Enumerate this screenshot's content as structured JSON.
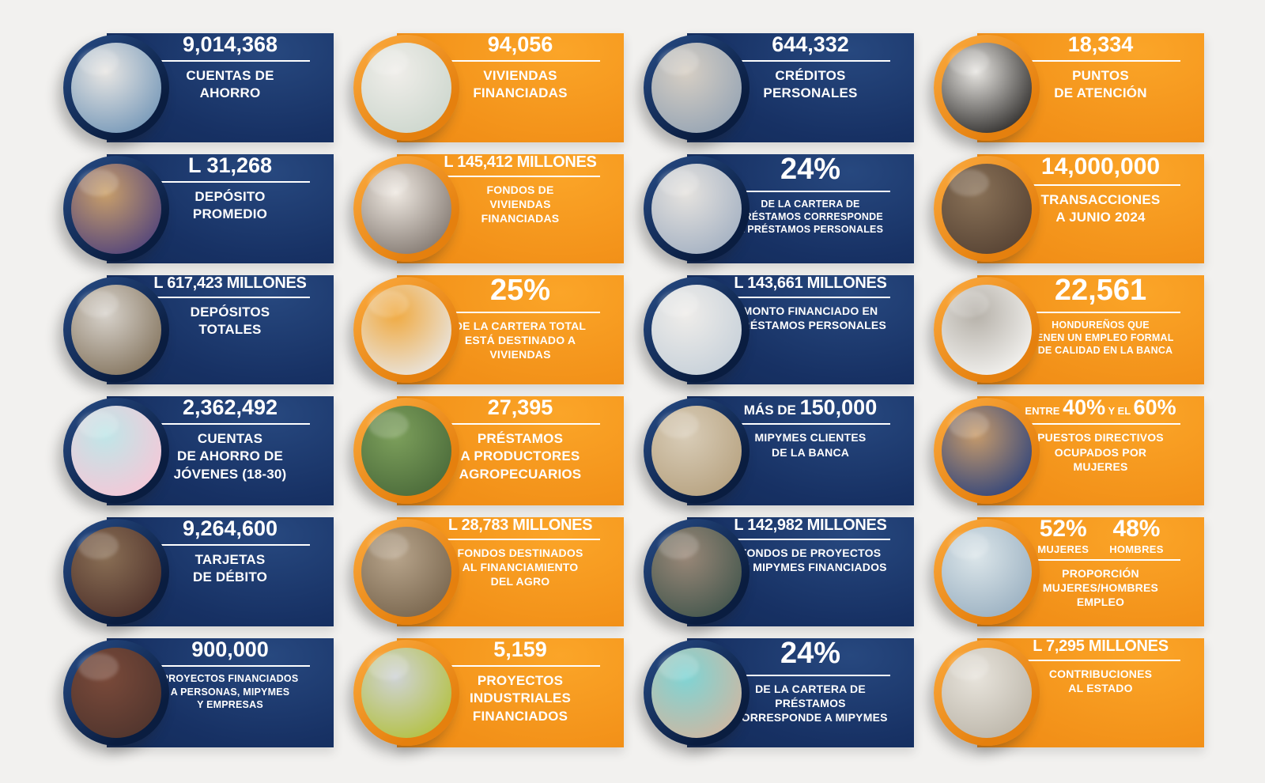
{
  "page": {
    "background_color": "#f2f1ef",
    "text_color": "#ffffff",
    "navy_color": "#12294f",
    "orange_color": "#f29018"
  },
  "chart_data": {
    "type": "table",
    "title": "Indicadores del sector bancario (infografía)",
    "columns": [
      "valor",
      "indicador"
    ],
    "rows": [
      [
        "9,014,368",
        "Cuentas de ahorro"
      ],
      [
        "L 31,268",
        "Depósito promedio"
      ],
      [
        "L 617,423 millones",
        "Depósitos totales"
      ],
      [
        "2,362,492",
        "Cuentas de ahorro de jóvenes (18-30)"
      ],
      [
        "9,264,600",
        "Tarjetas de débito"
      ],
      [
        "900,000",
        "Proyectos financiados a personas, MIPYMES y empresas"
      ],
      [
        "94,056",
        "Viviendas financiadas"
      ],
      [
        "L 145,412 millones",
        "Fondos de viviendas financiadas"
      ],
      [
        "25%",
        "De la cartera total está destinado a viviendas"
      ],
      [
        "27,395",
        "Préstamos a productores agropecuarios"
      ],
      [
        "L 28,783 millones",
        "Fondos destinados al financiamiento del agro"
      ],
      [
        "5,159",
        "Proyectos industriales financiados"
      ],
      [
        "644,332",
        "Créditos personales"
      ],
      [
        "24%",
        "De la cartera de préstamos corresponde a préstamos personales"
      ],
      [
        "L 143,661 millones",
        "Monto financiado en préstamos personales"
      ],
      [
        "Más de 150,000",
        "MIPYMES clientes de la banca"
      ],
      [
        "L 142,982 millones",
        "Fondos de proyectos de MIPYMES financiados"
      ],
      [
        "24%",
        "De la cartera de préstamos corresponde a MIPYMES"
      ],
      [
        "18,334",
        "Puntos de atención"
      ],
      [
        "14,000,000",
        "Transacciones a junio 2024"
      ],
      [
        "22,561",
        "Hondureños que tienen un empleo formal y de calidad en la banca"
      ],
      [
        "Entre 40% y el 60%",
        "Puestos directivos ocupados por mujeres"
      ],
      [
        "52% mujeres / 48% hombres",
        "Proporción mujeres/hombres empleo"
      ],
      [
        "L 7,295 millones",
        "Contribuciones al Estado"
      ]
    ]
  },
  "cards": [
    {
      "col": 1,
      "row": 1,
      "theme": "navy",
      "photo": {
        "name": "photo-couple-back-to-back",
        "desc": "pareja de espaldas con brazos cruzados",
        "tones": [
          "#e8e6e3",
          "#7d9dbb"
        ]
      },
      "headline": [
        {
          "t": "9,014,368",
          "s": "lg"
        }
      ],
      "label": "CUENTAS DE\nAHORRO",
      "lsize": "md"
    },
    {
      "col": 1,
      "row": 2,
      "theme": "navy",
      "photo": {
        "name": "photo-wallet-bank-teller",
        "desc": "manos con billetera en ventanilla",
        "tones": [
          "#caa06a",
          "#5a4a7a"
        ]
      },
      "headline": [
        {
          "t": "L 31,268",
          "s": "lg"
        }
      ],
      "label": "DEPÓSITO\nPROMEDIO",
      "lsize": "md"
    },
    {
      "col": 1,
      "row": 3,
      "theme": "navy",
      "photo": {
        "name": "photo-coin-jar",
        "desc": "mano depositando moneda en frasco",
        "tones": [
          "#d8d3cc",
          "#8a7b66"
        ]
      },
      "headline": [
        {
          "t": "L 617,423 MILLONES",
          "s": "md"
        }
      ],
      "label": "DEPÓSITOS\nTOTALES",
      "lsize": "md"
    },
    {
      "col": 1,
      "row": 4,
      "theme": "navy",
      "photo": {
        "name": "photo-young-woman-piggy-bank",
        "desc": "joven con alcancía rosada",
        "tones": [
          "#bfe6e8",
          "#f2c9d8"
        ]
      },
      "headline": [
        {
          "t": "2,362,492",
          "s": "lg"
        }
      ],
      "label": "CUENTAS\nDE AHORRO DE\nJÓVENES (18-30)",
      "lsize": "md"
    },
    {
      "col": 1,
      "row": 5,
      "theme": "navy",
      "photo": {
        "name": "photo-woman-phone-debit-card",
        "desc": "mujer con teléfono y tarjeta",
        "tones": [
          "#8a6f55",
          "#53362e"
        ]
      },
      "headline": [
        {
          "t": "9,264,600",
          "s": "lg"
        }
      ],
      "label": "TARJETAS\nDE DÉBITO",
      "lsize": "md"
    },
    {
      "col": 1,
      "row": 6,
      "theme": "navy",
      "photo": {
        "name": "photo-businesswoman-cafe",
        "desc": "emprendedora con brazos cruzados",
        "tones": [
          "#7a4a3a",
          "#53362e"
        ]
      },
      "headline": [
        {
          "t": "900,000",
          "s": "lg"
        }
      ],
      "label": "PROYECTOS FINANCIADOS\nA PERSONAS, MIPYMES\nY EMPRESAS",
      "lsize": "xs"
    },
    {
      "col": 2,
      "row": 1,
      "theme": "orange",
      "photo": {
        "name": "photo-couple-new-home",
        "desc": "pareja con casa modelo y laptop",
        "tones": [
          "#f0eeea",
          "#cfd8cf"
        ]
      },
      "headline": [
        {
          "t": "94,056",
          "s": "lg"
        }
      ],
      "label": "VIVIENDAS\nFINANCIADAS",
      "lsize": "md"
    },
    {
      "col": 2,
      "row": 2,
      "theme": "orange",
      "photo": {
        "name": "photo-hand-model-house",
        "desc": "mano sosteniendo casa modelo",
        "tones": [
          "#efe9e2",
          "#8a8078"
        ]
      },
      "headline": [
        {
          "t": "L 145,412 MILLONES",
          "s": "md"
        }
      ],
      "label": "FONDOS DE\nVIVIENDAS\nFINANCIADAS",
      "lsize": "sm"
    },
    {
      "col": 2,
      "row": 3,
      "theme": "orange",
      "photo": {
        "name": "photo-couple-celebrating-moving",
        "desc": "pareja celebrando mudanza",
        "tones": [
          "#f0a93f",
          "#e9e2d8"
        ]
      },
      "headline": [
        {
          "t": "25%",
          "s": "xl"
        }
      ],
      "label": "DE LA CARTERA TOTAL\nESTÁ DESTINADO A\nVIVIENDAS",
      "lsize": "sm"
    },
    {
      "col": 2,
      "row": 4,
      "theme": "orange",
      "photo": {
        "name": "photo-farmer-field",
        "desc": "agricultor con azadón en campo",
        "tones": [
          "#7da05c",
          "#4e6e3c"
        ]
      },
      "headline": [
        {
          "t": "27,395",
          "s": "lg"
        }
      ],
      "label": "PRÉSTAMOS\nA PRODUCTORES\nAGROPECUARIOS",
      "lsize": "md"
    },
    {
      "col": 2,
      "row": 5,
      "theme": "orange",
      "photo": {
        "name": "photo-dairy-farmer-cows",
        "desc": "ganadero con lechera entre vacas",
        "tones": [
          "#b8a58c",
          "#7d6a52"
        ]
      },
      "headline": [
        {
          "t": "L 28,783 MILLONES",
          "s": "md"
        }
      ],
      "label": "FONDOS DESTINADOS\nAL FINANCIAMIENTO\nDEL AGRO",
      "lsize": "sm"
    },
    {
      "col": 2,
      "row": 6,
      "theme": "orange",
      "photo": {
        "name": "photo-industrial-engineer",
        "desc": "ingeniero con casco y laptop",
        "tones": [
          "#cfd3d6",
          "#b5c24a"
        ]
      },
      "headline": [
        {
          "t": "5,159",
          "s": "lg"
        }
      ],
      "label": "PROYECTOS\nINDUSTRIALES\nFINANCIADOS",
      "lsize": "md"
    },
    {
      "col": 3,
      "row": 1,
      "theme": "navy",
      "photo": {
        "name": "photo-handshake-loan",
        "desc": "apretón de manos y documentos",
        "tones": [
          "#d7cfc4",
          "#9aa7b5"
        ]
      },
      "headline": [
        {
          "t": "644,332",
          "s": "lg"
        }
      ],
      "label": "CRÉDITOS\nPERSONALES",
      "lsize": "md"
    },
    {
      "col": 3,
      "row": 2,
      "theme": "navy",
      "photo": {
        "name": "photo-couple-advisor-meeting",
        "desc": "pareja en reunión con asesor",
        "tones": [
          "#e6e3df",
          "#a8b4c4"
        ]
      },
      "headline": [
        {
          "t": "24%",
          "s": "xl"
        }
      ],
      "label": "DE LA CARTERA DE\nPRÉSTAMOS CORRESPONDE\nA PRÉSTAMOS PERSONALES",
      "lsize": "xs"
    },
    {
      "col": 3,
      "row": 3,
      "theme": "navy",
      "photo": {
        "name": "photo-woman-holding-cash",
        "desc": "mujer sonriente con billetes",
        "tones": [
          "#efedea",
          "#c9d2da"
        ]
      },
      "headline": [
        {
          "t": "L 143,661 MILLONES",
          "s": "md"
        }
      ],
      "label": "MONTO FINANCIADO EN\nPRÉSTAMOS PERSONALES",
      "lsize": "sm"
    },
    {
      "col": 3,
      "row": 4,
      "theme": "navy",
      "photo": {
        "name": "photo-shop-owner-paper-bag",
        "desc": "comerciante entregando bolsa",
        "tones": [
          "#d9cdb8",
          "#b9a584"
        ]
      },
      "headline": [
        {
          "t": "MÁS DE ",
          "s": "sm"
        },
        {
          "t": "150,000",
          "s": "lg"
        }
      ],
      "label": "MIPYMES CLIENTES\nDE LA BANCA",
      "lsize": "sm"
    },
    {
      "col": 3,
      "row": 5,
      "theme": "navy",
      "photo": {
        "name": "photo-butcher-shop-woman",
        "desc": "mujer con delantal en carnicería",
        "tones": [
          "#9a8878",
          "#4a5a50"
        ]
      },
      "headline": [
        {
          "t": "L 142,982 MILLONES",
          "s": "md"
        }
      ],
      "label": "FONDOS DE PROYECTOS\nDE MIPYMES FINANCIADOS",
      "lsize": "sm"
    },
    {
      "col": 3,
      "row": 6,
      "theme": "navy",
      "photo": {
        "name": "photo-entrepreneur-apron",
        "desc": "emprendedor con delantal fondo turquesa",
        "tones": [
          "#7fd4d4",
          "#c9b9a5"
        ]
      },
      "headline": [
        {
          "t": "24%",
          "s": "xl"
        }
      ],
      "label": "DE LA CARTERA DE\nPRÉSTAMOS\nCORRESPONDE A MIPYMES",
      "lsize": "sm"
    },
    {
      "col": 4,
      "row": 1,
      "theme": "orange",
      "photo": {
        "name": "photo-businesswoman-handshake",
        "desc": "ejecutiva dando la mano en escritorio",
        "tones": [
          "#e8e6e2",
          "#3a3836"
        ]
      },
      "headline": [
        {
          "t": "18,334",
          "s": "lg"
        }
      ],
      "label": "PUNTOS\nDE ATENCIÓN",
      "lsize": "md"
    },
    {
      "col": 4,
      "row": 2,
      "theme": "orange",
      "photo": {
        "name": "photo-woman-card-phone",
        "desc": "mujer con tarjeta y teléfono en café",
        "tones": [
          "#8a7258",
          "#5a4636"
        ]
      },
      "headline": [
        {
          "t": "14,000,000",
          "s": "xl2"
        }
      ],
      "label": "TRANSACCIONES\nA JUNIO 2024",
      "lsize": "md"
    },
    {
      "col": 4,
      "row": 3,
      "theme": "orange",
      "photo": {
        "name": "photo-bank-employee-desk",
        "desc": "empleado bancario en escritorio",
        "tones": [
          "#b5b0a8",
          "#f0efec"
        ]
      },
      "headline": [
        {
          "t": "22,561",
          "s": "xl"
        }
      ],
      "label": "HONDUREÑOS QUE\nTIENEN UN EMPLEO FORMAL\nY DE CALIDAD EN LA BANCA",
      "lsize": "xs"
    },
    {
      "col": 4,
      "row": 4,
      "theme": "orange",
      "photo": {
        "name": "photo-executive-woman-glasses",
        "desc": "directiva sosteniendo lentes",
        "tones": [
          "#c79b6b",
          "#3a4a7a"
        ]
      },
      "headline": [
        {
          "t": "ENTRE ",
          "s": "xs"
        },
        {
          "t": "40%",
          "s": "lg"
        },
        {
          "t": " Y EL ",
          "s": "xs"
        },
        {
          "t": "60%",
          "s": "lg"
        }
      ],
      "label": "PUESTOS DIRECTIVOS\nOCUPADOS POR\nMUJERES",
      "lsize": "sm"
    },
    {
      "col": 4,
      "row": 5,
      "theme": "orange",
      "photo": {
        "name": "photo-coworkers-laptop",
        "desc": "hombre y mujer con laptop",
        "tones": [
          "#dce6ea",
          "#9fb4c4"
        ]
      },
      "dual": [
        {
          "pct": "52%",
          "sub": "MUJERES"
        },
        {
          "pct": "48%",
          "sub": "HOMBRES"
        }
      ],
      "label": "PROPORCIÓN\nMUJERES/HOMBRES\nEMPLEO",
      "lsize": "sm"
    },
    {
      "col": 4,
      "row": 6,
      "theme": "orange",
      "photo": {
        "name": "photo-calculator-receipts",
        "desc": "mano con calculadora y recibos",
        "tones": [
          "#e8e4dc",
          "#bfb9ad"
        ]
      },
      "headline": [
        {
          "t": "L 7,295 MILLONES",
          "s": "md"
        }
      ],
      "label": "CONTRIBUCIONES\nAL ESTADO",
      "lsize": "sm"
    }
  ]
}
